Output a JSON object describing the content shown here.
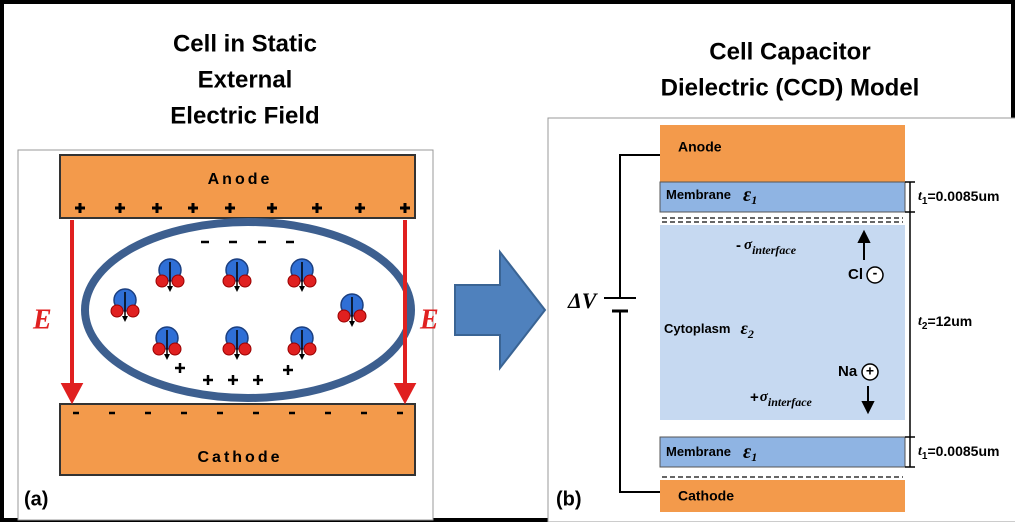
{
  "left_panel": {
    "title": [
      "Cell in Static",
      "External",
      "Electric Field"
    ],
    "anode": "Anode",
    "cathode": "Cathode",
    "field_label_left": "E",
    "field_label_right": "E",
    "panel_label": "(a)"
  },
  "right_panel": {
    "title": [
      "Cell Capacitor",
      "Dielectric (CCD) Model"
    ],
    "anode": "Anode",
    "top_membrane": {
      "label": "Membrane",
      "symbol": "ε",
      "subscript": "1",
      "thickness": {
        "symbol": "t",
        "subscript": "1",
        "value": "=0.0085um"
      }
    },
    "negative_interface": {
      "sign": "-",
      "symbol": "σ",
      "subscript": "interface"
    },
    "chloride": {
      "label": "Cl",
      "charge": "-"
    },
    "cytoplasm": {
      "label": "Cytoplasm",
      "symbol": "ε",
      "subscript": "2",
      "thickness": {
        "symbol": "t",
        "subscript": "2",
        "value": "=12um"
      }
    },
    "sodium": {
      "label": "Na",
      "charge": "+"
    },
    "positive_interface": {
      "sign": "+",
      "symbol": "σ",
      "subscript": "interface"
    },
    "bottom_membrane": {
      "label": "Membrane",
      "symbol": "ε",
      "subscript": "1",
      "thickness": {
        "symbol": "t",
        "subscript": "1",
        "value": "=0.0085um"
      }
    },
    "cathode": "Cathode",
    "voltage": "ΔV",
    "panel_label": "(b)"
  }
}
